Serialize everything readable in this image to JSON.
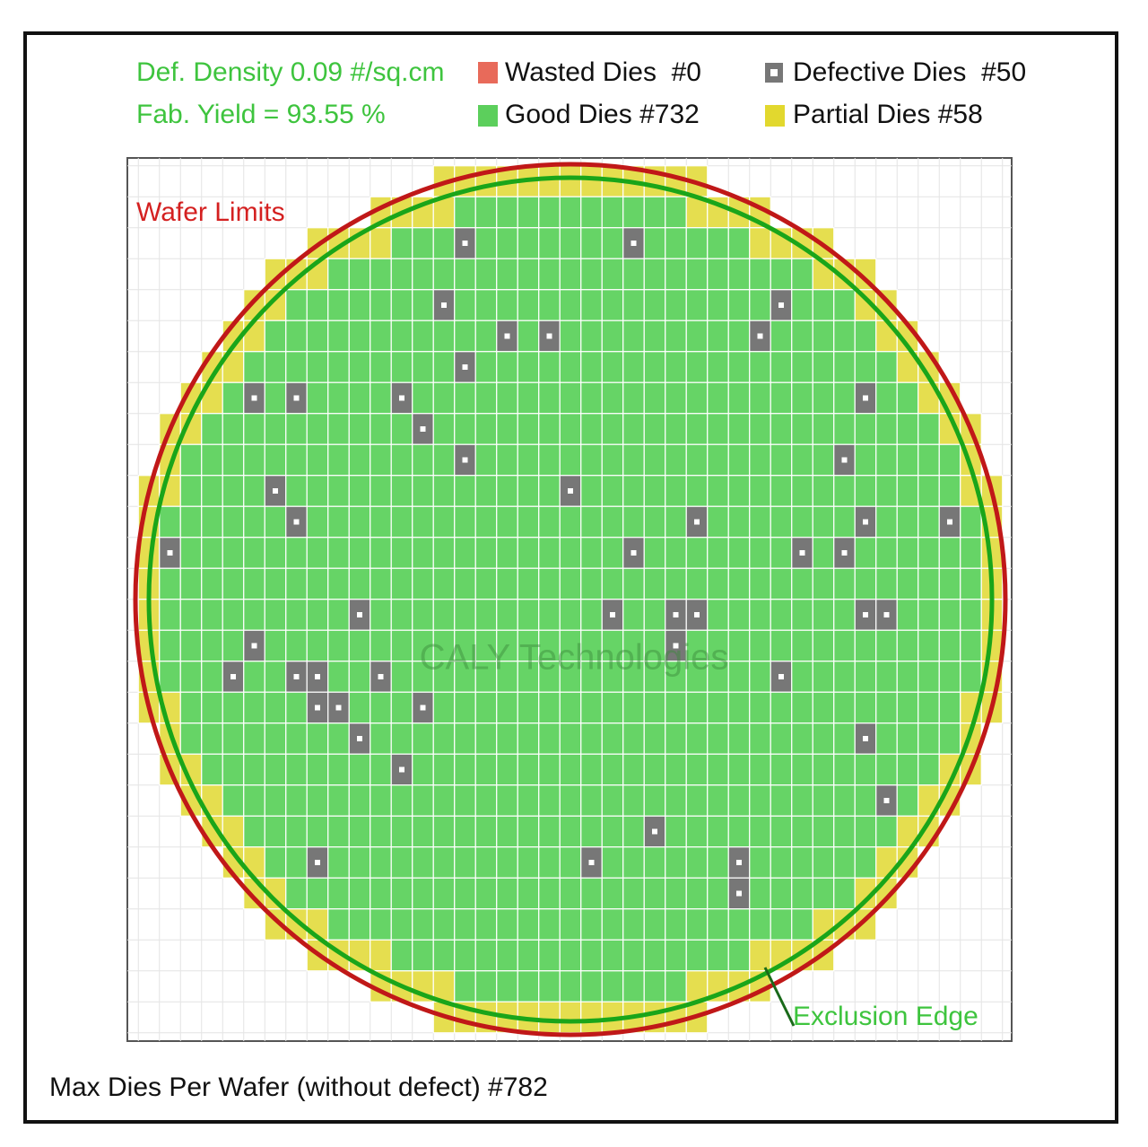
{
  "legend": {
    "def_density": "Def. Density 0.09 #/sq.cm",
    "fab_yield": "Fab. Yield = 93.55 %",
    "wasted": "Wasted Dies  #0",
    "defective": "Defective Dies  #50",
    "good": "Good Dies #732",
    "partial": "Partial Dies #58"
  },
  "labels": {
    "wafer_limits": "Wafer Limits",
    "exclusion_edge": "Exclusion Edge",
    "watermark": "CALY Technologies"
  },
  "footer": "Max Dies Per Wafer (without defect) #782"
}
